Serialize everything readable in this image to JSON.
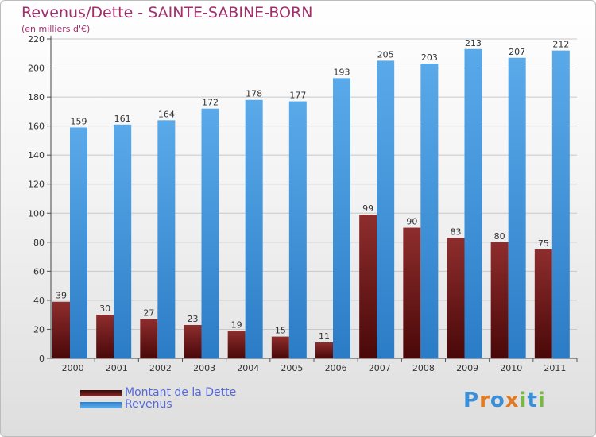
{
  "chart_data": {
    "type": "bar",
    "title": "Revenus/Dette - SAINTE-SABINE-BORN",
    "subtitle": "(en milliers d'€)",
    "categories": [
      "2000",
      "2001",
      "2002",
      "2003",
      "2004",
      "2005",
      "2006",
      "2007",
      "2008",
      "2009",
      "2010",
      "2011"
    ],
    "series": [
      {
        "name": "Montant de la Dette",
        "color": "#7a1a1a",
        "values": [
          39,
          30,
          27,
          23,
          19,
          15,
          11,
          99,
          90,
          83,
          80,
          75
        ]
      },
      {
        "name": "Revenus",
        "color": "#3a8fd8",
        "values": [
          159,
          161,
          164,
          172,
          178,
          177,
          193,
          205,
          203,
          213,
          207,
          212
        ]
      }
    ],
    "ylim": [
      0,
      220
    ],
    "yticks": [
      0,
      20,
      40,
      60,
      80,
      100,
      120,
      140,
      160,
      180,
      200,
      220
    ],
    "xlabel": "",
    "ylabel": "",
    "grid": true,
    "legend_position": "bottom-left"
  },
  "branding": {
    "logo_text": "Proxiti"
  }
}
